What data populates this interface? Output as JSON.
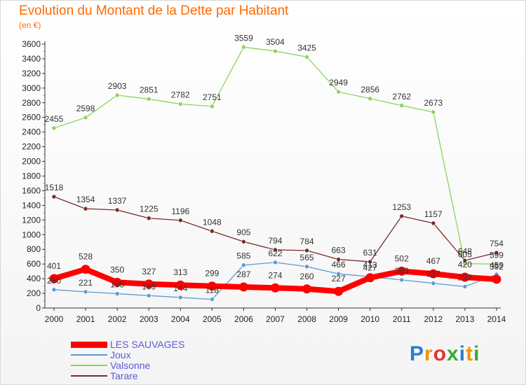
{
  "title": "Evolution du Montant de la Dette par Habitant",
  "subtitle": "(en €)",
  "logo": {
    "letters": [
      "P",
      "r",
      "o",
      "x",
      "i",
      "t",
      "i"
    ],
    "colors": [
      "#2c7bd6",
      "#f39200",
      "#e8312b",
      "#3aa935",
      "#2c7bd6",
      "#f39200",
      "#3aa935"
    ]
  },
  "chart_data": {
    "type": "line",
    "title": "Evolution du Montant de la Dette par Habitant",
    "ylabel": "(en €)",
    "xlabel": "",
    "x": [
      "2000",
      "2001",
      "2002",
      "2003",
      "2004",
      "2005",
      "2006",
      "2007",
      "2008",
      "2009",
      "2010",
      "2011",
      "2012",
      "2013",
      "2014"
    ],
    "ylim": [
      0,
      3600
    ],
    "yticks": [
      0,
      200,
      400,
      600,
      800,
      1000,
      1200,
      1400,
      1600,
      1800,
      2000,
      2200,
      2400,
      2600,
      2800,
      3000,
      3200,
      3400,
      3600
    ],
    "grid": false,
    "legend": "bottom-left",
    "series": [
      {
        "name": "LES SAUVAGES",
        "color": "#ff0000",
        "values": [
          401,
          528,
          350,
          327,
          313,
          299,
          287,
          274,
          260,
          227,
          413,
          502,
          467,
          420,
          392
        ],
        "labels": [
          "401",
          "528",
          "350",
          "327",
          "313",
          "299",
          "287",
          "274",
          "260",
          "227",
          "413",
          "502",
          "467",
          "420",
          "392"
        ]
      },
      {
        "name": "Joux",
        "color": "#5b9bd5",
        "values": [
          250,
          221,
          195,
          169,
          144,
          118,
          585,
          622,
          565,
          466,
          427,
          383,
          337,
          292,
          459
        ],
        "labels": [
          "250",
          "221",
          "195",
          "169",
          "144",
          "118",
          "585",
          "622",
          "565",
          "466",
          "427",
          "383",
          "337",
          "292",
          "459"
        ]
      },
      {
        "name": "Valsonne",
        "color": "#8bd45a",
        "values": [
          2455,
          2598,
          2903,
          2851,
          2782,
          2751,
          3559,
          3504,
          3425,
          2949,
          2856,
          2762,
          2673,
          605,
          599
        ],
        "labels": [
          "2455",
          "2598",
          "2903",
          "2851",
          "2782",
          "2751",
          "3559",
          "3504",
          "3425",
          "2949",
          "2856",
          "2762",
          "2673",
          "605",
          "599"
        ]
      },
      {
        "name": "Tarare",
        "color": "#7a2a2a",
        "values": [
          1518,
          1354,
          1337,
          1225,
          1196,
          1048,
          905,
          794,
          784,
          663,
          631,
          1253,
          1157,
          648,
          754
        ],
        "labels": [
          "1518",
          "1354",
          "1337",
          "1225",
          "1196",
          "1048",
          "905",
          "794",
          "784",
          "663",
          "631",
          "1253",
          "1157",
          "648",
          "754"
        ]
      }
    ]
  }
}
